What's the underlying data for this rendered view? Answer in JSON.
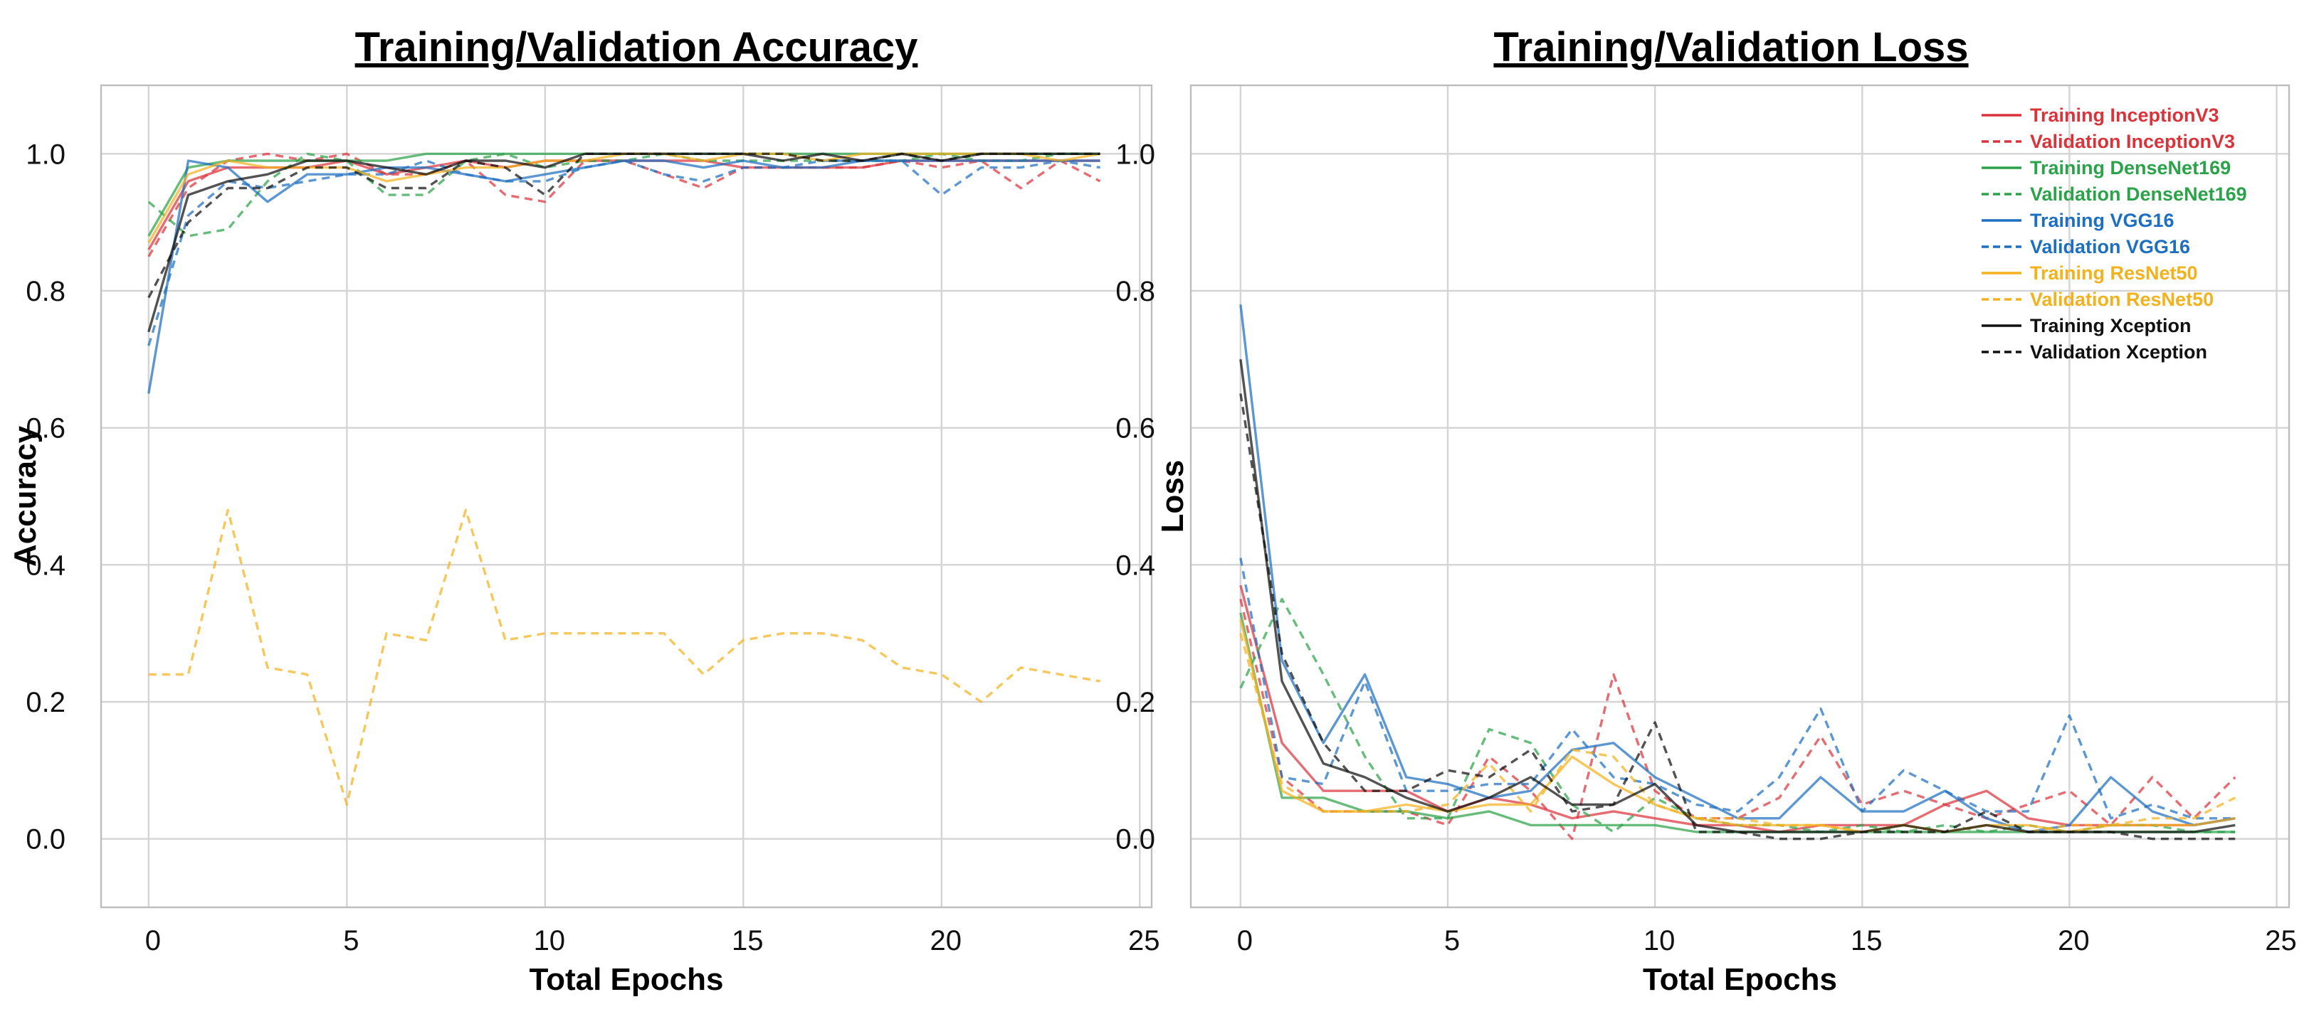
{
  "colors": {
    "InceptionV3": "#d9333b",
    "DenseNet169": "#2ca24a",
    "VGG16": "#1f6fc0",
    "ResNet50": "#f2b21e",
    "Xception": "#111111"
  },
  "chart_data": [
    {
      "type": "line",
      "title": "Training/Validation Accuracy",
      "xlabel": "Total Epochs",
      "ylabel": "Accuracy",
      "xlim": [
        -1.2,
        25.3
      ],
      "ylim": [
        -0.1,
        1.1
      ],
      "xticks": [
        0,
        5,
        10,
        15,
        20,
        25
      ],
      "xtick_labels": [
        "0",
        "5",
        "10",
        "15",
        "20",
        "25"
      ],
      "yticks": [
        0.0,
        0.2,
        0.4,
        0.6,
        0.8,
        1.0
      ],
      "ytick_labels": [
        "0.0",
        "0.2",
        "0.4",
        "0.6",
        "0.8",
        "1.0"
      ],
      "grid": true,
      "x": [
        0,
        1,
        2,
        3,
        4,
        5,
        6,
        7,
        8,
        9,
        10,
        11,
        12,
        13,
        14,
        15,
        16,
        17,
        18,
        19,
        20,
        21,
        22,
        23,
        24
      ],
      "series": [
        {
          "name": "Training InceptionV3",
          "model": "InceptionV3",
          "style": "solid",
          "values": [
            0.86,
            0.96,
            0.98,
            0.98,
            0.98,
            0.99,
            0.97,
            0.98,
            0.99,
            0.98,
            0.99,
            0.99,
            0.99,
            0.99,
            0.99,
            0.98,
            0.98,
            0.98,
            0.98,
            0.99,
            0.99,
            0.99,
            0.99,
            0.99,
            0.99
          ]
        },
        {
          "name": "Validation InceptionV3",
          "model": "InceptionV3",
          "style": "dashed",
          "values": [
            0.85,
            0.95,
            0.99,
            1.0,
            0.99,
            1.0,
            0.97,
            0.97,
            0.99,
            0.94,
            0.93,
            0.99,
            0.99,
            0.97,
            0.95,
            0.98,
            0.98,
            0.98,
            0.98,
            0.99,
            0.98,
            0.99,
            0.95,
            0.99,
            0.96
          ]
        },
        {
          "name": "Training DenseNet169",
          "model": "DenseNet169",
          "style": "solid",
          "values": [
            0.88,
            0.98,
            0.99,
            0.99,
            0.99,
            0.99,
            0.99,
            1.0,
            1.0,
            1.0,
            1.0,
            1.0,
            1.0,
            1.0,
            1.0,
            1.0,
            1.0,
            1.0,
            1.0,
            1.0,
            1.0,
            1.0,
            1.0,
            1.0,
            1.0
          ]
        },
        {
          "name": "Validation DenseNet169",
          "model": "DenseNet169",
          "style": "dashed",
          "values": [
            0.93,
            0.88,
            0.89,
            0.96,
            1.0,
            0.99,
            0.94,
            0.94,
            0.99,
            1.0,
            0.98,
            0.99,
            0.99,
            1.0,
            0.99,
            0.99,
            0.99,
            0.99,
            0.99,
            0.99,
            1.0,
            0.99,
            0.99,
            1.0,
            1.0
          ]
        },
        {
          "name": "Training VGG16",
          "model": "VGG16",
          "style": "solid",
          "values": [
            0.65,
            0.99,
            0.98,
            0.93,
            0.97,
            0.97,
            0.98,
            0.98,
            0.97,
            0.96,
            0.97,
            0.98,
            0.99,
            0.99,
            0.98,
            0.99,
            0.98,
            0.98,
            0.99,
            0.99,
            0.99,
            0.99,
            0.99,
            0.99,
            0.99
          ]
        },
        {
          "name": "Validation VGG16",
          "model": "VGG16",
          "style": "dashed",
          "values": [
            0.72,
            0.91,
            0.96,
            0.95,
            0.96,
            0.97,
            0.97,
            0.99,
            0.97,
            0.96,
            0.96,
            0.98,
            0.99,
            0.97,
            0.96,
            0.98,
            0.98,
            0.99,
            0.99,
            0.99,
            0.94,
            0.98,
            0.98,
            0.99,
            0.98
          ]
        },
        {
          "name": "Training ResNet50",
          "model": "ResNet50",
          "style": "solid",
          "values": [
            0.87,
            0.97,
            0.99,
            0.98,
            0.98,
            0.98,
            0.96,
            0.97,
            0.98,
            0.98,
            0.99,
            0.99,
            1.0,
            1.0,
            0.99,
            1.0,
            1.0,
            0.99,
            1.0,
            1.0,
            1.0,
            1.0,
            1.0,
            0.99,
            1.0
          ]
        },
        {
          "name": "Validation ResNet50",
          "model": "ResNet50",
          "style": "dashed",
          "values": [
            0.24,
            0.24,
            0.48,
            0.25,
            0.24,
            0.05,
            0.3,
            0.29,
            0.48,
            0.29,
            0.3,
            0.3,
            0.3,
            0.3,
            0.24,
            0.29,
            0.3,
            0.3,
            0.29,
            0.25,
            0.24,
            0.2,
            0.25,
            0.24,
            0.23
          ]
        },
        {
          "name": "Training Xception",
          "model": "Xception",
          "style": "solid",
          "values": [
            0.74,
            0.94,
            0.96,
            0.97,
            0.99,
            0.99,
            0.98,
            0.97,
            0.99,
            0.99,
            0.98,
            1.0,
            1.0,
            1.0,
            1.0,
            1.0,
            0.99,
            1.0,
            0.99,
            1.0,
            0.99,
            1.0,
            1.0,
            1.0,
            1.0
          ]
        },
        {
          "name": "Validation Xception",
          "model": "Xception",
          "style": "dashed",
          "values": [
            0.79,
            0.9,
            0.95,
            0.95,
            0.98,
            0.98,
            0.95,
            0.95,
            0.99,
            0.98,
            0.94,
            1.0,
            1.0,
            1.0,
            1.0,
            1.0,
            1.0,
            0.99,
            0.99,
            1.0,
            0.99,
            1.0,
            1.0,
            1.0,
            1.0
          ]
        }
      ]
    },
    {
      "type": "line",
      "title": "Training/Validation Loss",
      "xlabel": "Total Epochs",
      "ylabel": "Loss",
      "xlim": [
        -1.2,
        25.3
      ],
      "ylim": [
        -0.1,
        1.1
      ],
      "xticks": [
        0,
        5,
        10,
        15,
        20,
        25
      ],
      "xtick_labels": [
        "0",
        "5",
        "10",
        "15",
        "20",
        "25"
      ],
      "yticks": [
        0.0,
        0.2,
        0.4,
        0.6,
        0.8,
        1.0
      ],
      "ytick_labels": [
        "0.0",
        "0.2",
        "0.4",
        "0.6",
        "0.8",
        "1.0"
      ],
      "grid": true,
      "legend_position": "top-right",
      "x": [
        0,
        1,
        2,
        3,
        4,
        5,
        6,
        7,
        8,
        9,
        10,
        11,
        12,
        13,
        14,
        15,
        16,
        17,
        18,
        19,
        20,
        21,
        22,
        23,
        24
      ],
      "series": [
        {
          "name": "Training InceptionV3",
          "model": "InceptionV3",
          "style": "solid",
          "values": [
            0.37,
            0.14,
            0.07,
            0.07,
            0.07,
            0.04,
            0.06,
            0.05,
            0.03,
            0.04,
            0.03,
            0.02,
            0.02,
            0.01,
            0.02,
            0.02,
            0.02,
            0.05,
            0.07,
            0.03,
            0.02,
            0.02,
            0.02,
            0.02,
            0.03
          ]
        },
        {
          "name": "Validation InceptionV3",
          "model": "InceptionV3",
          "style": "dashed",
          "values": [
            0.35,
            0.09,
            0.04,
            0.04,
            0.04,
            0.02,
            0.12,
            0.07,
            0.0,
            0.24,
            0.07,
            0.03,
            0.03,
            0.06,
            0.15,
            0.05,
            0.07,
            0.05,
            0.03,
            0.05,
            0.07,
            0.02,
            0.09,
            0.03,
            0.09
          ]
        },
        {
          "name": "Training DenseNet169",
          "model": "DenseNet169",
          "style": "solid",
          "values": [
            0.33,
            0.06,
            0.06,
            0.04,
            0.04,
            0.03,
            0.04,
            0.02,
            0.02,
            0.02,
            0.02,
            0.01,
            0.01,
            0.01,
            0.01,
            0.01,
            0.01,
            0.01,
            0.01,
            0.01,
            0.01,
            0.01,
            0.01,
            0.01,
            0.01
          ]
        },
        {
          "name": "Validation DenseNet169",
          "model": "DenseNet169",
          "style": "dashed",
          "values": [
            0.22,
            0.35,
            0.24,
            0.12,
            0.03,
            0.03,
            0.16,
            0.14,
            0.05,
            0.01,
            0.06,
            0.03,
            0.02,
            0.02,
            0.01,
            0.02,
            0.01,
            0.02,
            0.01,
            0.02,
            0.01,
            0.02,
            0.02,
            0.01,
            0.01
          ]
        },
        {
          "name": "Training VGG16",
          "model": "VGG16",
          "style": "solid",
          "values": [
            0.78,
            0.26,
            0.14,
            0.24,
            0.09,
            0.08,
            0.06,
            0.07,
            0.13,
            0.14,
            0.09,
            0.06,
            0.03,
            0.03,
            0.09,
            0.04,
            0.04,
            0.07,
            0.03,
            0.01,
            0.02,
            0.09,
            0.04,
            0.02,
            0.03
          ]
        },
        {
          "name": "Validation VGG16",
          "model": "VGG16",
          "style": "dashed",
          "values": [
            0.41,
            0.09,
            0.08,
            0.23,
            0.07,
            0.07,
            0.08,
            0.08,
            0.16,
            0.09,
            0.08,
            0.05,
            0.04,
            0.09,
            0.19,
            0.04,
            0.1,
            0.07,
            0.04,
            0.04,
            0.18,
            0.03,
            0.05,
            0.03,
            0.03
          ]
        },
        {
          "name": "Training ResNet50",
          "model": "ResNet50",
          "style": "solid",
          "values": [
            0.32,
            0.07,
            0.04,
            0.04,
            0.05,
            0.04,
            0.05,
            0.05,
            0.12,
            0.08,
            0.05,
            0.03,
            0.02,
            0.02,
            0.02,
            0.01,
            0.02,
            0.01,
            0.02,
            0.02,
            0.01,
            0.02,
            0.02,
            0.02,
            0.03
          ]
        },
        {
          "name": "Validation ResNet50",
          "model": "ResNet50",
          "style": "dashed",
          "values": [
            0.3,
            0.08,
            0.04,
            0.04,
            0.04,
            0.05,
            0.11,
            0.04,
            0.13,
            0.12,
            0.05,
            0.03,
            0.03,
            0.02,
            0.02,
            0.01,
            0.02,
            0.01,
            0.02,
            0.01,
            0.02,
            0.02,
            0.03,
            0.03,
            0.06
          ]
        },
        {
          "name": "Training Xception",
          "model": "Xception",
          "style": "solid",
          "values": [
            0.7,
            0.23,
            0.11,
            0.09,
            0.06,
            0.04,
            0.06,
            0.09,
            0.05,
            0.05,
            0.08,
            0.02,
            0.01,
            0.01,
            0.01,
            0.01,
            0.02,
            0.01,
            0.02,
            0.01,
            0.01,
            0.01,
            0.01,
            0.01,
            0.02
          ]
        },
        {
          "name": "Validation Xception",
          "model": "Xception",
          "style": "dashed",
          "values": [
            0.65,
            0.27,
            0.14,
            0.07,
            0.07,
            0.1,
            0.09,
            0.13,
            0.04,
            0.05,
            0.17,
            0.01,
            0.01,
            0.0,
            0.0,
            0.01,
            0.01,
            0.01,
            0.04,
            0.01,
            0.01,
            0.01,
            0.0,
            0.0,
            0.0
          ]
        }
      ]
    }
  ]
}
